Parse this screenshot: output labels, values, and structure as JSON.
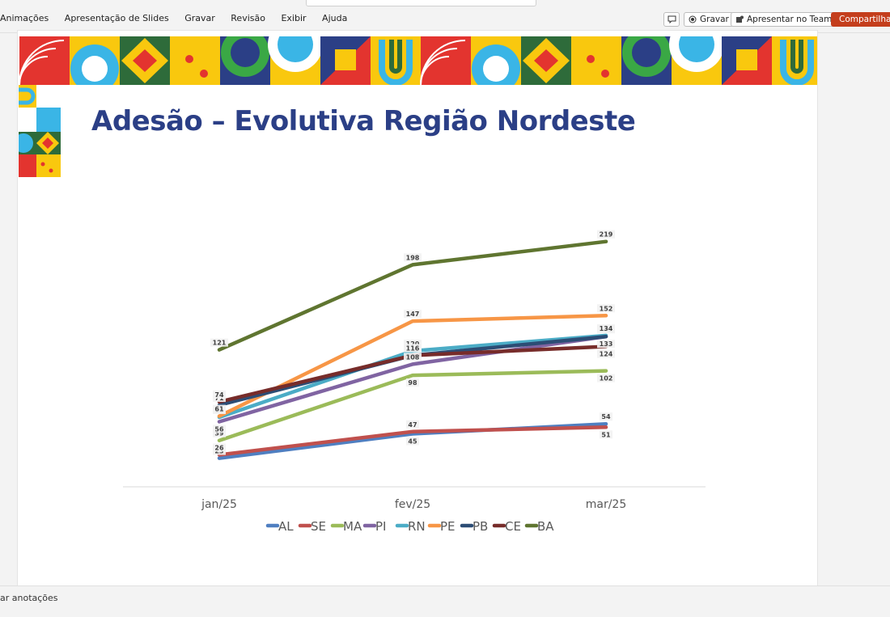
{
  "ribbon": {
    "tabs": [
      "Animações",
      "Apresentação de Slides",
      "Gravar",
      "Revisão",
      "Exibir",
      "Ajuda"
    ],
    "record_label": "Gravar",
    "teams_label": "Apresentar no Teams",
    "share_label": "Compartilhar"
  },
  "slide": {
    "title": "Adesão – Evolutiva Região Nordeste"
  },
  "notes": {
    "label": "ar anotações"
  },
  "colors": {
    "title": "#2b3f86",
    "AL": "#4f7fc1",
    "SE": "#c0504d",
    "MA": "#9bbb59",
    "PI": "#8064a2",
    "RN": "#4bacc6",
    "PE": "#f79646",
    "PB": "#2c4d75",
    "CE": "#772c2a",
    "BA": "#5f7530"
  },
  "chart_data": {
    "type": "line",
    "categories": [
      "jan/25",
      "fev/25",
      "mar/25"
    ],
    "series": [
      {
        "name": "AL",
        "values": [
          23,
          45,
          54
        ]
      },
      {
        "name": "SE",
        "values": [
          26,
          47,
          51
        ]
      },
      {
        "name": "MA",
        "values": [
          39,
          98,
          102
        ]
      },
      {
        "name": "PI",
        "values": [
          56,
          108,
          133
        ]
      },
      {
        "name": "RN",
        "values": [
          60,
          120,
          134
        ]
      },
      {
        "name": "PE",
        "values": [
          61,
          147,
          152
        ]
      },
      {
        "name": "PB",
        "values": [
          71,
          116,
          133
        ]
      },
      {
        "name": "CE",
        "values": [
          74,
          116,
          124
        ]
      },
      {
        "name": "BA",
        "values": [
          121,
          198,
          219
        ]
      }
    ],
    "ylim": [
      0,
      240
    ],
    "grid": false,
    "legend": "bottom"
  }
}
